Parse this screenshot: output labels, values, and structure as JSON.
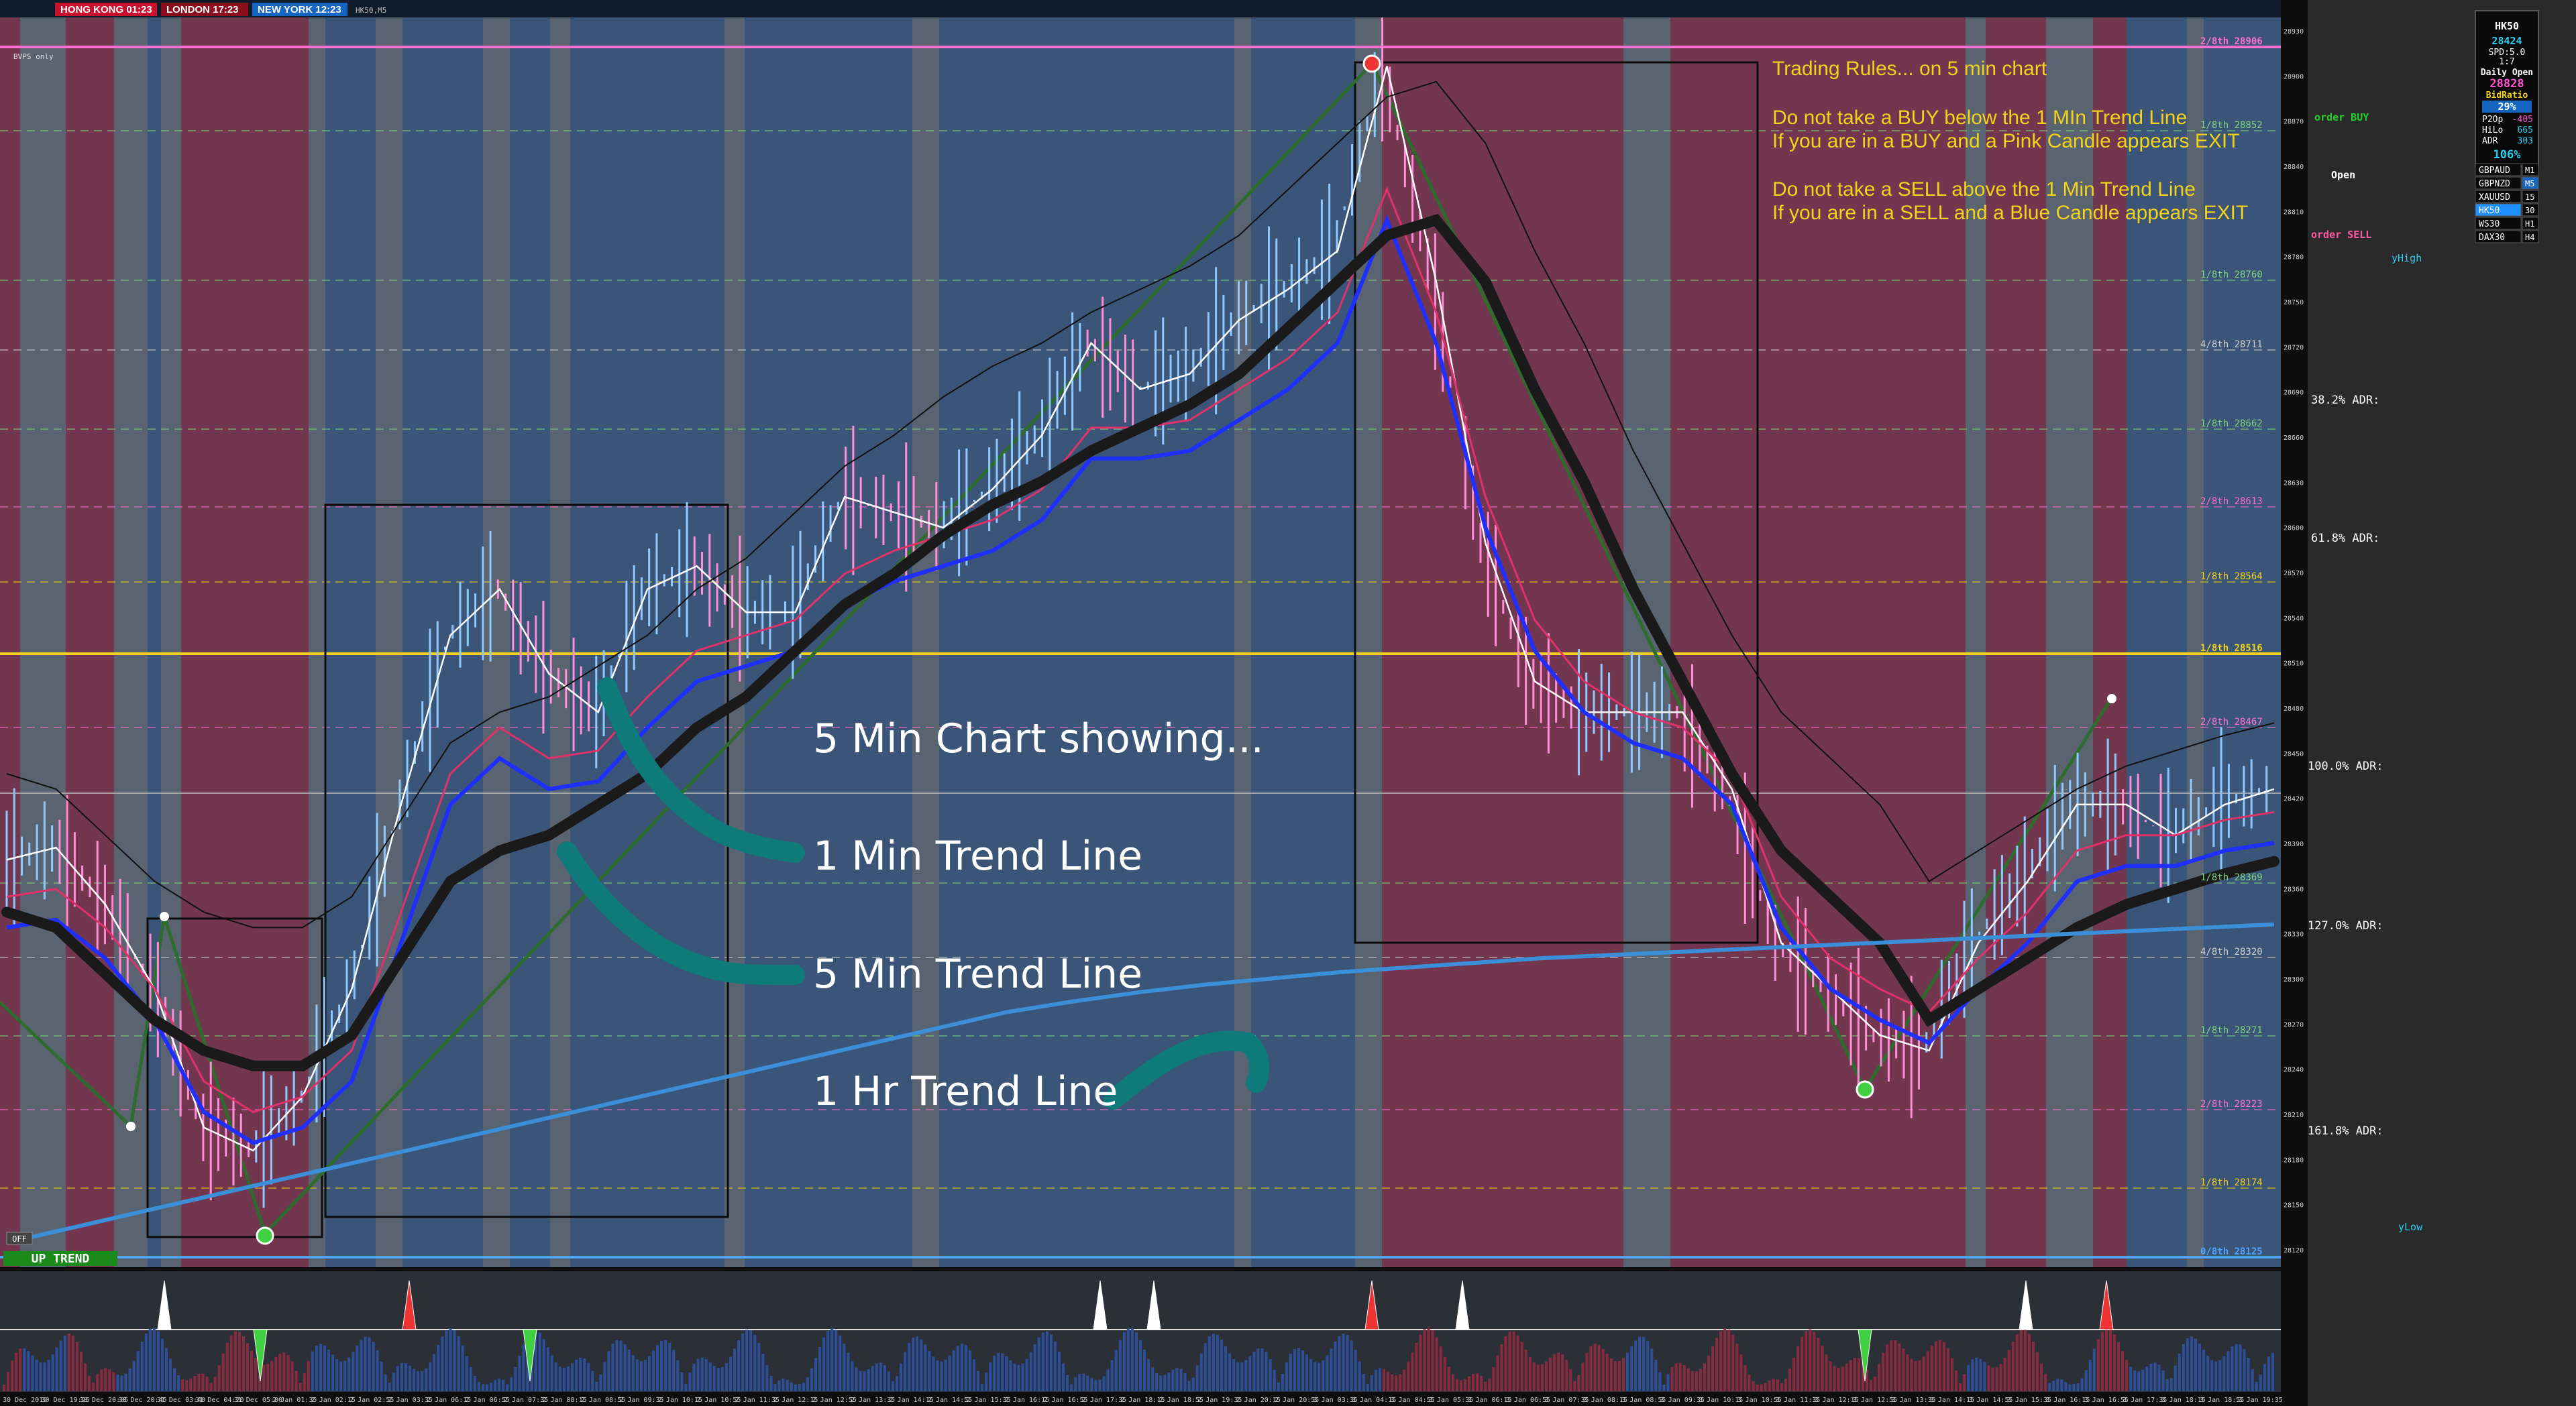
{
  "sessions": [
    {
      "label": "HONG KONG 01:23",
      "color": "#c8102e"
    },
    {
      "label": "LONDON  17:23",
      "color": "#8a0e1e"
    },
    {
      "label": "NEW YORK  12:23",
      "color": "#1565c0"
    }
  ],
  "top_left_small": "HK50,M5",
  "pivot_tag": "BVPS only",
  "rules": [
    "Trading Rules... on 5 min chart",
    "",
    "Do not take a BUY below the 1 MIn Trend Line",
    "If you are in a BUY and a Pink Candle appears EXIT",
    "",
    "Do not take a SELL above the 1 Min Trend Line",
    "If you are in a SELL and a Blue Candle appears EXIT"
  ],
  "annotations": {
    "title": "5 Min Chart showing...",
    "one_min": "1 Min Trend Line",
    "five_min": "5 Min Trend Line",
    "one_hr": "1 Hr Trend Line"
  },
  "levels": [
    {
      "label": "2/8th  28906",
      "color": "#ff6fd0"
    },
    {
      "label": "1/8th  28852",
      "color": "#7fd27f"
    },
    {
      "label": "1/8th  28760",
      "color": "#7fd27f"
    },
    {
      "label": "4/8th  28711",
      "color": "#d0d0d0"
    },
    {
      "label": "1/8th  28662",
      "color": "#7fd27f"
    },
    {
      "label": "2/8th  28613",
      "color": "#ff6fd0"
    },
    {
      "label": "1/8th  28564",
      "color": "#f2d21a"
    },
    {
      "label": "1/8th  28516",
      "color": "#f2d21a"
    },
    {
      "label": "2/8th  28467",
      "color": "#ff6fd0"
    },
    {
      "label": "1/8th  28369",
      "color": "#7fd27f"
    },
    {
      "label": "4/8th  28320",
      "color": "#d0d0d0"
    },
    {
      "label": "1/8th  28271",
      "color": "#7fd27f"
    },
    {
      "label": "2/8th  28223",
      "color": "#ff6fd0"
    },
    {
      "label": "1/8th  28174",
      "color": "#f2d21a"
    },
    {
      "label": "0/8th  28125",
      "color": "#4fa3ff"
    }
  ],
  "adr_labels": [
    "38.2% ADR:",
    "61.8% ADR:",
    "100.0% ADR:",
    "127.0% ADR:",
    "161.8% ADR:"
  ],
  "order_buy": "order BUY",
  "open_label": "Open",
  "order_sell": "order SELL",
  "y_high": "yHigh",
  "y_low": "yLow",
  "info_panel": {
    "symbol": "HK50",
    "price": "28424",
    "spread": "SPD:5.0",
    "ratio": "1:7",
    "daily_open_label": "Daily Open",
    "daily_open": "28828",
    "bid_ratio_label": "BidRatio",
    "bid_ratio": "29%",
    "p2op_label": "P2Op",
    "p2op": "-405",
    "hilo_label": "HiLo",
    "hilo": "665",
    "adr_label": "ADR",
    "adr": "303",
    "adr_pct": "106%"
  },
  "symbols": [
    {
      "name": "GBPAUD",
      "tf": "M1"
    },
    {
      "name": "GBPNZD",
      "tf": "M5"
    },
    {
      "name": "XAUUSD",
      "tf": "15"
    },
    {
      "name": "HK50",
      "tf": "30"
    },
    {
      "name": "WS30",
      "tf": "H1"
    },
    {
      "name": "DAX30",
      "tf": "H4"
    }
  ],
  "off_button": "OFF",
  "trend_badge": "UP TREND",
  "time_labels": [
    "30 Dec 2019",
    "30 Dec 19:25",
    "30 Dec 20:05",
    "30 Dec 20:45",
    "31 Dec 03:40",
    "31 Dec 04:20",
    "31 Dec 05:00",
    "2 Jan 01:35",
    "2 Jan 02:15",
    "2 Jan 02:55",
    "2 Jan 03:35",
    "2 Jan 06:15",
    "2 Jan 06:55",
    "2 Jan 07:35",
    "2 Jan 08:15",
    "2 Jan 08:55",
    "2 Jan 09:35",
    "2 Jan 10:15",
    "2 Jan 10:55",
    "2 Jan 11:35",
    "2 Jan 12:15",
    "2 Jan 12:55",
    "2 Jan 13:35",
    "2 Jan 14:15",
    "2 Jan 14:55",
    "2 Jan 15:35",
    "2 Jan 16:15",
    "2 Jan 16:55",
    "2 Jan 17:35",
    "2 Jan 18:15",
    "2 Jan 18:55",
    "2 Jan 19:35",
    "2 Jan 20:15",
    "2 Jan 20:55",
    "3 Jan 03:35",
    "3 Jan 04:15",
    "3 Jan 04:55",
    "3 Jan 05:35",
    "3 Jan 06:15",
    "3 Jan 06:55",
    "3 Jan 07:35",
    "3 Jan 08:15",
    "3 Jan 08:55",
    "3 Jan 09:35",
    "3 Jan 10:15",
    "3 Jan 10:55",
    "3 Jan 11:35",
    "3 Jan 12:15",
    "3 Jan 12:55",
    "3 Jan 13:35",
    "3 Jan 14:15",
    "3 Jan 14:55",
    "3 Jan 15:35",
    "3 Jan 16:15",
    "3 Jan 16:55",
    "3 Jan 17:35",
    "3 Jan 18:15",
    "3 Jan 18:55",
    "3 Jan 19:35"
  ],
  "price_ticks": [
    "28930",
    "28900",
    "28870",
    "28840",
    "28810",
    "28780",
    "28750",
    "28720",
    "28690",
    "28660",
    "28630",
    "28600",
    "28570",
    "28540",
    "28510",
    "28480",
    "28450",
    "28420",
    "28390",
    "28360",
    "28330",
    "28300",
    "28270",
    "28240",
    "28210",
    "28180",
    "28150",
    "28120"
  ],
  "colors": {
    "bg_blue": "#3b5578",
    "bg_red": "#72374e",
    "bg_gray": "#5a6470",
    "candle_up": "#8fc9ff",
    "candle_down": "#ff8cd6",
    "trend_1min": "#1f2fff",
    "trend_5min": "#1a1a1a",
    "trend_1hr": "#3a8fd8",
    "zigzag": "#2e6b2e",
    "annot_stroke": "#0e7a7a"
  },
  "chart_data": {
    "type": "line",
    "symbol": "HK50",
    "timeframe": "M5",
    "y_range": [
      28120,
      28930
    ],
    "series": [
      {
        "values": [
          28384,
          28392,
          28355,
          28300,
          28210,
          28195,
          28230,
          28300,
          28420,
          28530,
          28560,
          28505,
          28480,
          28560,
          28575,
          28545,
          28545,
          28620,
          28610,
          28600,
          28625,
          28660,
          28720,
          28690,
          28700,
          28735,
          28755,
          28780,
          28900,
          28760,
          28590,
          28500,
          28480,
          28480,
          28480,
          28430,
          28330,
          28300,
          28270,
          28260,
          28330,
          28370,
          28420,
          28420,
          28400,
          28420,
          28430
        ]
      },
      {
        "values": [
          28360,
          28365,
          28340,
          28300,
          28240,
          28220,
          28230,
          28260,
          28350,
          28440,
          28470,
          28450,
          28455,
          28490,
          28520,
          28530,
          28540,
          28570,
          28585,
          28595,
          28605,
          28625,
          28665,
          28665,
          28670,
          28690,
          28710,
          28740,
          28820,
          28740,
          28620,
          28540,
          28500,
          28480,
          28470,
          28440,
          28360,
          28320,
          28300,
          28285,
          28320,
          28350,
          28390,
          28400,
          28400,
          28410,
          28415
        ]
      },
      {
        "values": [
          28350,
          28340,
          28310,
          28280,
          28260,
          28250,
          28250,
          28270,
          28320,
          28370,
          28390,
          28400,
          28420,
          28440,
          28470,
          28490,
          28520,
          28550,
          28570,
          28595,
          28615,
          28630,
          28650,
          28665,
          28680,
          28700,
          28730,
          28760,
          28790,
          28800,
          28760,
          28690,
          28630,
          28560,
          28500,
          28440,
          28390,
          28360,
          28330,
          28280,
          28300,
          28320,
          28340,
          28355,
          28365,
          28375,
          28383
        ]
      },
      {
        "values": [
          28135,
          28145,
          28155,
          28165,
          28175,
          28185,
          28195,
          28205,
          28215,
          28225,
          28235,
          28245,
          28255,
          28265,
          28275,
          28285,
          28292,
          28298,
          28303,
          28307,
          28311,
          28314,
          28317,
          28320,
          28322,
          28324,
          28326,
          28328,
          28330,
          28332,
          28334,
          28336,
          28338,
          28340,
          28342
        ]
      }
    ]
  }
}
